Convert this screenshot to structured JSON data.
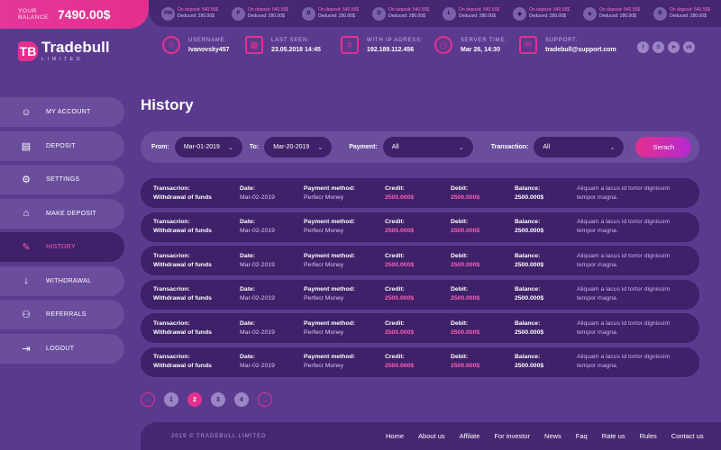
{
  "balance": {
    "label": "Your Balance:",
    "value": "7490.00$"
  },
  "ticker": [
    {
      "icon": "PM",
      "icon_name": "perfect-money-icon",
      "deposit": "On deposit: 540.55$",
      "deduced": "Deduced: 280.00$"
    },
    {
      "icon": "P",
      "icon_name": "payeer-icon",
      "deposit": "On deposit: 540.55$",
      "deduced": "Deduced: 280.00$"
    },
    {
      "icon": "B",
      "icon_name": "bitcoin-icon",
      "deposit": "On deposit: 540.55$",
      "deduced": "Deduced: 280.00$"
    },
    {
      "icon": "D",
      "icon_name": "dash-icon",
      "deposit": "On deposit: 540.55$",
      "deduced": "Deduced: 280.00$"
    },
    {
      "icon": "Ł",
      "icon_name": "litecoin-icon",
      "deposit": "On deposit: 540.55$",
      "deduced": "Deduced: 280.00$"
    },
    {
      "icon": "◆",
      "icon_name": "ethereum-icon",
      "deposit": "On deposit: 540.55$",
      "deduced": "Deduced: 280.00$"
    },
    {
      "icon": "★",
      "icon_name": "stellar-icon",
      "deposit": "On deposit: 540.55$",
      "deduced": "Deduced: 280.00$"
    },
    {
      "icon": "Đ",
      "icon_name": "dogecoin-icon",
      "deposit": "On deposit: 540.55$",
      "deduced": "Deduced: 280.00$"
    }
  ],
  "logo": {
    "mark": "TB",
    "name": "Tradebull",
    "tagline": "LIMITED"
  },
  "header": {
    "username": {
      "label": "Username:",
      "value": "Ivanovsky457"
    },
    "last_seen": {
      "label": "Last seen:",
      "value": "23.05.2018  14:45"
    },
    "ip": {
      "label": "With IP adress:",
      "value": "192.189.112.456"
    },
    "server_time": {
      "label": "Server time:",
      "value": "Mar 26, 14:30"
    },
    "support": {
      "label": "Support:",
      "value": "tradebull@support.com"
    }
  },
  "social": [
    {
      "glyph": "f",
      "name": "facebook-icon"
    },
    {
      "glyph": "S",
      "name": "skype-icon"
    },
    {
      "glyph": "➤",
      "name": "telegram-icon"
    },
    {
      "glyph": "vk",
      "name": "vk-icon"
    }
  ],
  "nav": [
    {
      "label": "My Account",
      "glyph": "☺",
      "icon_name": "account-icon",
      "active": false
    },
    {
      "label": "Deposit",
      "glyph": "▤",
      "icon_name": "deposit-icon",
      "active": false
    },
    {
      "label": "Settings",
      "glyph": "⚙",
      "icon_name": "settings-icon",
      "active": false
    },
    {
      "label": "Make Deposit",
      "glyph": "⌂",
      "icon_name": "bank-icon",
      "active": false
    },
    {
      "label": "History",
      "glyph": "✎",
      "icon_name": "history-icon",
      "active": true
    },
    {
      "label": "Withdrawal",
      "glyph": "↓",
      "icon_name": "withdrawal-icon",
      "active": false
    },
    {
      "label": "Referrals",
      "glyph": "⚇",
      "icon_name": "referrals-icon",
      "active": false
    },
    {
      "label": "Logout",
      "glyph": "⇥",
      "icon_name": "logout-icon",
      "active": false
    }
  ],
  "page_title": "History",
  "filter": {
    "from_label": "From:",
    "from_value": "Mar-01-2019",
    "to_label": "To:",
    "to_value": "Mar-20-2019",
    "payment_label": "Payment:",
    "payment_value": "All",
    "transaction_label": "Transaction:",
    "transaction_value": "All",
    "search_label": "Serach"
  },
  "columns": {
    "transaction": "Transacrion:",
    "date": "Date:",
    "method": "Payment method:",
    "credit": "Credit:",
    "debit": "Debit:",
    "balance": "Balance:"
  },
  "rows": [
    {
      "transaction": "Withdrawal of funds",
      "date": "Mar-02-2019",
      "method": "Perfecr Money",
      "credit": "2500.000$",
      "debit": "2500.000$",
      "balance": "2500.000$",
      "desc": "Aliquam a lacus id tortor dignissim tempor magna."
    },
    {
      "transaction": "Withdrawal of funds",
      "date": "Mar-02-2019",
      "method": "Perfecr Money",
      "credit": "2500.000$",
      "debit": "2500.000$",
      "balance": "2500.000$",
      "desc": "Aliquam a lacus id tortor dignissim tempor magna."
    },
    {
      "transaction": "Withdrawal of funds",
      "date": "Mar-02-2019",
      "method": "Perfecr Money",
      "credit": "2500.000$",
      "debit": "2500.000$",
      "balance": "2500.000$",
      "desc": "Aliquam a lacus id tortor dignissim tempor magna."
    },
    {
      "transaction": "Withdrawal of funds",
      "date": "Mar-02-2019",
      "method": "Perfecr Money",
      "credit": "2500.000$",
      "debit": "2500.000$",
      "balance": "2500.000$",
      "desc": "Aliquam a lacus id tortor dignissim tempor magna."
    },
    {
      "transaction": "Withdrawal of funds",
      "date": "Mar-02-2019",
      "method": "Perfecr Money",
      "credit": "2500.000$",
      "debit": "2500.000$",
      "balance": "2500.000$",
      "desc": "Aliquam a lacus id tortor dignissim tempor magna."
    },
    {
      "transaction": "Withdrawal of funds",
      "date": "Mar-02-2019",
      "method": "Perfecr Money",
      "credit": "2500.000$",
      "debit": "2500.000$",
      "balance": "2500.000$",
      "desc": "Aliquam a lacus id tortor dignissim tempor magna."
    }
  ],
  "pagination": {
    "pages": [
      "1",
      "2",
      "3",
      "4"
    ],
    "current": "2"
  },
  "footer": {
    "copyright": "2019 © Tradebull Limited",
    "links": [
      "Home",
      "About us",
      "Affilate",
      "For investor",
      "News",
      "Faq",
      "Rate us",
      "Rules",
      "Contact us"
    ]
  }
}
